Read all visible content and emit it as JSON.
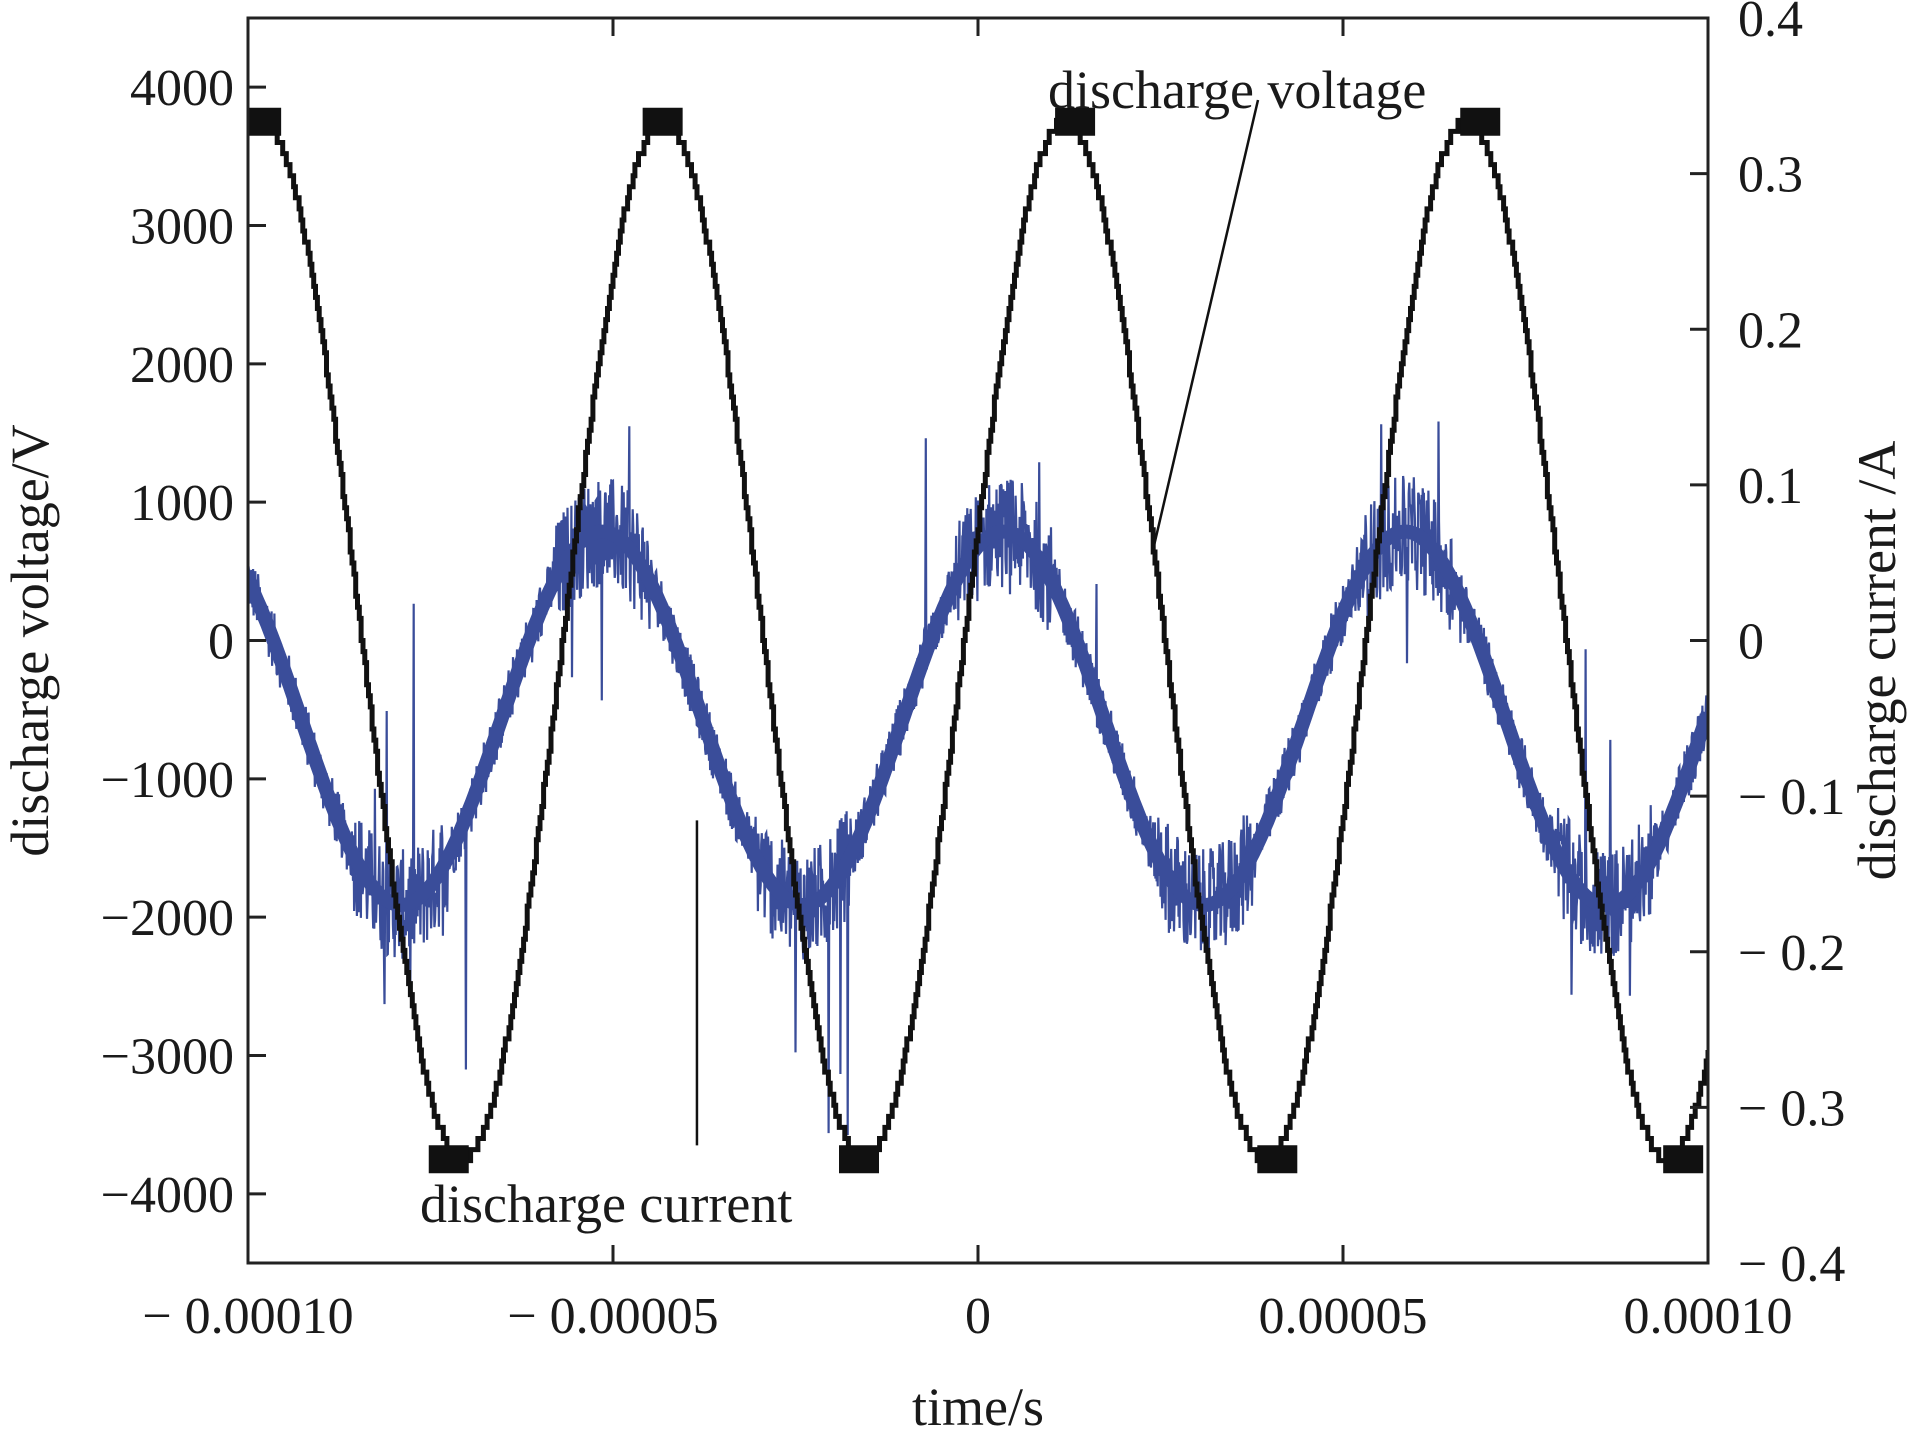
{
  "chart_data": {
    "type": "line",
    "title": "",
    "xlabel": "time/s",
    "ylabel_left": "discharge voltage/V",
    "ylabel_right": "discharge current /A",
    "xlim": [
      -0.0001,
      0.0001
    ],
    "ylim_left": [
      -4500,
      4500
    ],
    "ylim_right": [
      -0.4,
      0.4
    ],
    "grid": false,
    "legend": "none",
    "x_ticks": [
      -0.0001,
      -5e-05,
      0,
      5e-05,
      0.0001
    ],
    "x_tick_labels": [
      "− 0.00010",
      "− 0.00005",
      "0",
      "0.00005",
      "0.00010"
    ],
    "y_left_ticks": [
      4000,
      3000,
      2000,
      1000,
      0,
      -1000,
      -2000,
      -3000,
      -4000
    ],
    "y_left_tick_labels": [
      "4000",
      "3000",
      "2000",
      "1000",
      "0",
      "−1000",
      "−2000",
      "−3000",
      "−4000"
    ],
    "y_right_ticks": [
      0.4,
      0.3,
      0.2,
      0.1,
      0,
      -0.1,
      -0.2,
      -0.3,
      -0.4
    ],
    "y_right_tick_labels": [
      "0.4",
      "0.3",
      "0.2",
      "0.1",
      "0",
      "− 0.1",
      "− 0.2",
      "− 0.3",
      "− 0.4"
    ],
    "series": [
      {
        "name": "discharge voltage",
        "axis": "left",
        "color": "#111111",
        "waveform": "sine",
        "amplitude": 3750,
        "period": 5.5e-05,
        "peak_times": [
          -9.82e-05,
          -4.32e-05,
          1.33e-05,
          6.88e-05
        ],
        "trough_times": [
          -7.25e-05,
          -1.63e-05,
          4.1e-05,
          9.66e-05
        ]
      },
      {
        "name": "discharge current",
        "axis": "right",
        "color": "#3a4d9a",
        "waveform": "noisy sine",
        "amplitude": 0.12,
        "offset": -0.05,
        "period": 5.5e-05,
        "peak_times": [
          -5.15e-05,
          2e-06,
          5.5e-05
        ],
        "trough_times": [
          -7.8e-05,
          -2.45e-05,
          3e-05,
          8.55e-05
        ]
      }
    ],
    "annotations": [
      {
        "text": "discharge voltage",
        "target_series": "discharge voltage"
      },
      {
        "text": "discharge current",
        "target_series": "discharge current"
      }
    ]
  }
}
